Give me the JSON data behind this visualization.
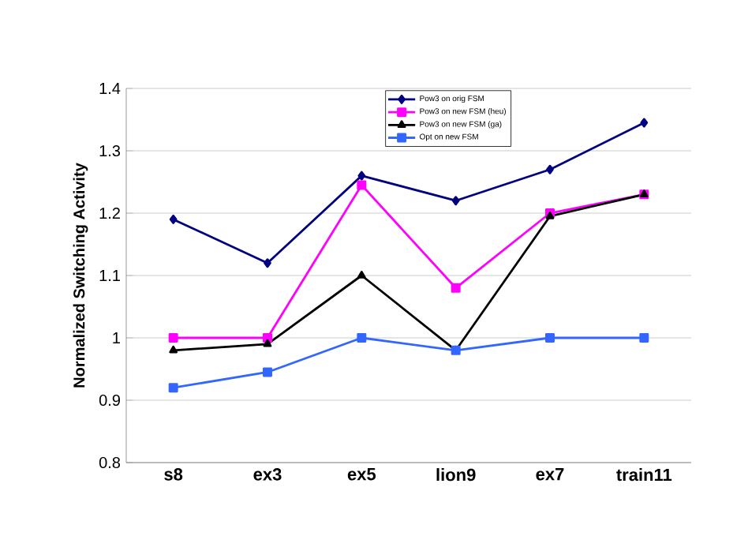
{
  "chart_data": {
    "type": "line",
    "ylabel": "Normalized Switching Activity",
    "categories": [
      "s8",
      "ex3",
      "ex5",
      "lion9",
      "ex7",
      "train11"
    ],
    "series": [
      {
        "name": "Pow3 on orig FSM",
        "color": "#000080",
        "marker": "diamond",
        "values": [
          1.19,
          1.12,
          1.26,
          1.22,
          1.27,
          1.345
        ]
      },
      {
        "name": "Pow3 on new FSM (heu)",
        "color": "#ff00ff",
        "marker": "square",
        "values": [
          1.0,
          1.0,
          1.245,
          1.08,
          1.2,
          1.23
        ]
      },
      {
        "name": "Pow3 on new FSM (ga)",
        "color": "#000000",
        "marker": "triangle",
        "values": [
          0.98,
          0.99,
          1.1,
          0.98,
          1.195,
          1.23
        ]
      },
      {
        "name": "Opt on new FSM",
        "color": "#3366ff",
        "marker": "square",
        "values": [
          0.92,
          0.945,
          1.0,
          0.98,
          1.0,
          1.0
        ]
      }
    ],
    "ylim": [
      0.8,
      1.4
    ],
    "yticks": [
      0.8,
      0.9,
      1,
      1.1,
      1.2,
      1.3,
      1.4
    ],
    "grid": "y",
    "legend": "top"
  }
}
